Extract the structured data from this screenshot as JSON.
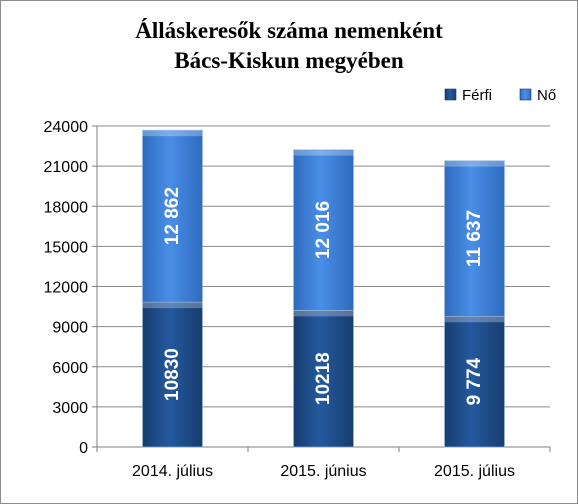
{
  "chart_data": {
    "type": "bar",
    "stacked": true,
    "title_line1": "Álláskeresők száma nemenként",
    "title_line2": "Bács-Kiskun megyében",
    "categories": [
      "2014. július",
      "2015. június",
      "2015. július"
    ],
    "series": [
      {
        "name": "Férfi",
        "values": [
          10830,
          10218,
          9774
        ],
        "labels": [
          "10830",
          "10218",
          "9 774"
        ],
        "color": "#1f4e8c"
      },
      {
        "name": "Nő",
        "values": [
          12862,
          12016,
          11637
        ],
        "labels": [
          "12 862",
          "12 016",
          "11 637"
        ],
        "color": "#3c7fd6"
      }
    ],
    "ylim": [
      0,
      24000
    ],
    "yticks": [
      "0",
      "3000",
      "6000",
      "9000",
      "12000",
      "15000",
      "18000",
      "21000",
      "24000"
    ],
    "grid": true,
    "legend_position": "top-right"
  }
}
